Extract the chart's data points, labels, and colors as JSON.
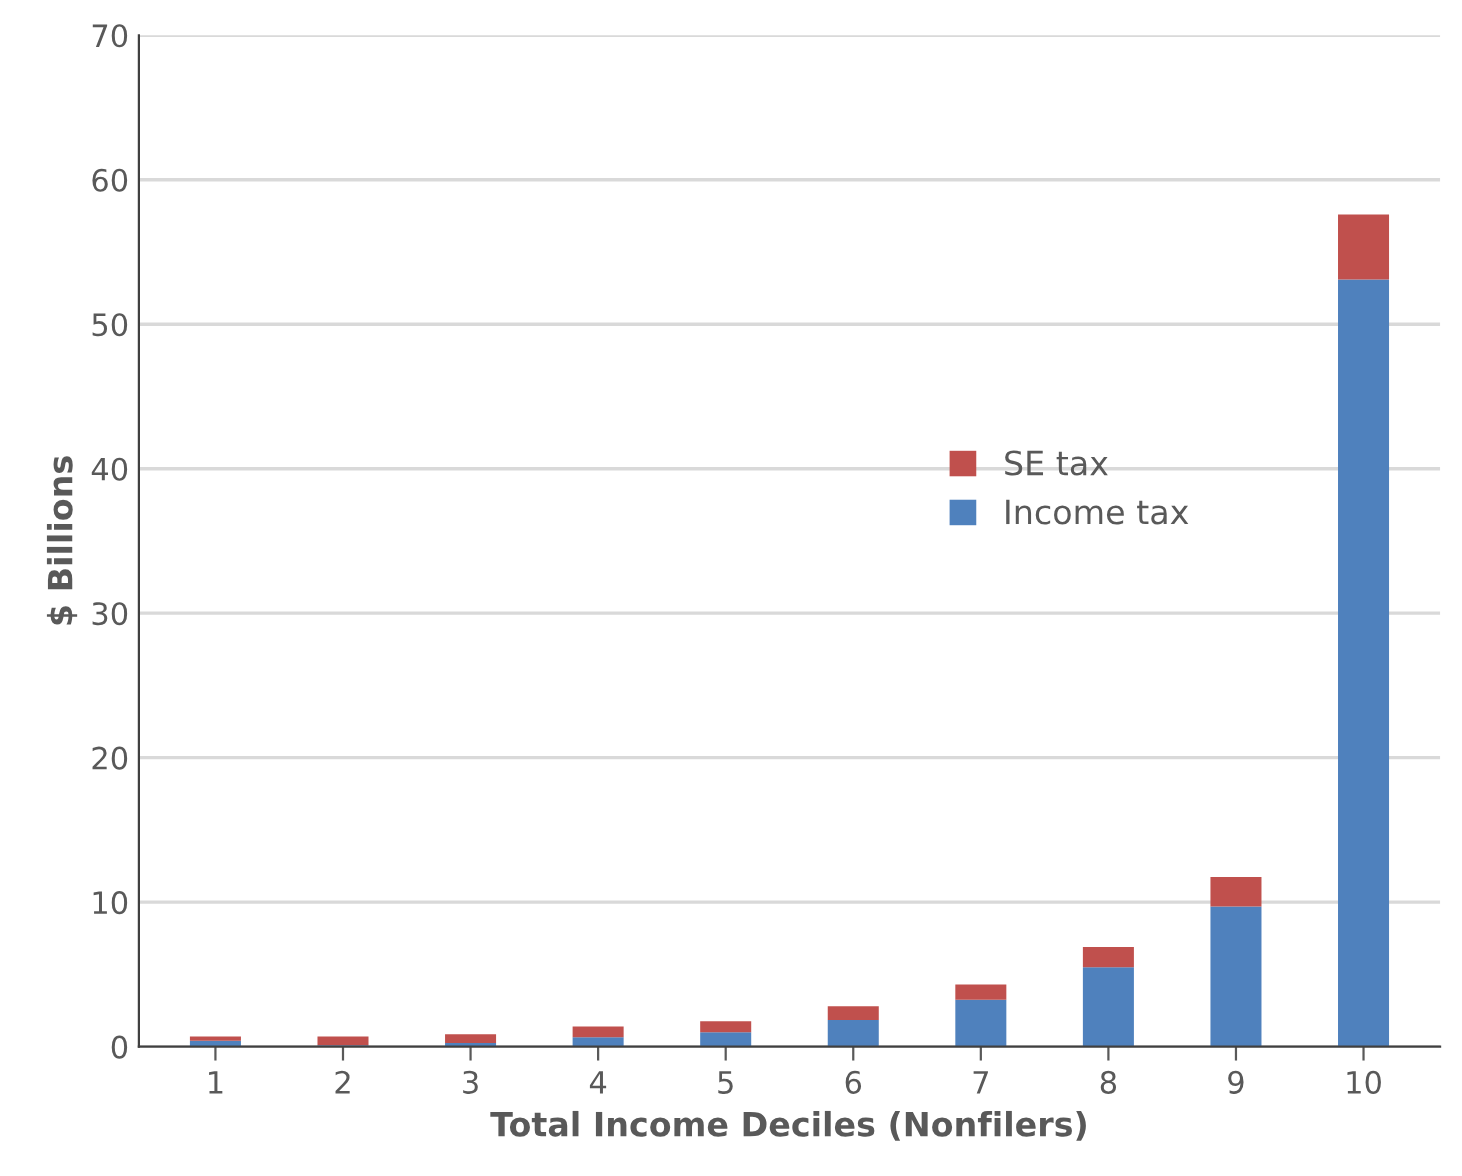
{
  "chart_data": {
    "type": "bar",
    "stacked": true,
    "xlabel": "Total Income Deciles (Nonfilers)",
    "ylabel": "$ Billions",
    "categories": [
      "1",
      "2",
      "3",
      "4",
      "5",
      "6",
      "7",
      "8",
      "9",
      "10"
    ],
    "series": [
      {
        "name": "Income tax",
        "color": "#4f81bd",
        "values": [
          0.4,
          0.1,
          0.25,
          0.65,
          1.0,
          1.85,
          3.25,
          5.5,
          9.7,
          53.1
        ]
      },
      {
        "name": "SE tax",
        "color": "#c0504d",
        "values": [
          0.3,
          0.6,
          0.6,
          0.75,
          0.75,
          0.95,
          1.05,
          1.4,
          2.05,
          4.5
        ]
      }
    ],
    "ylim": [
      0,
      70
    ],
    "yticks": [
      0,
      10,
      20,
      30,
      40,
      50,
      60,
      70
    ],
    "grid": "y",
    "legend": "right"
  }
}
